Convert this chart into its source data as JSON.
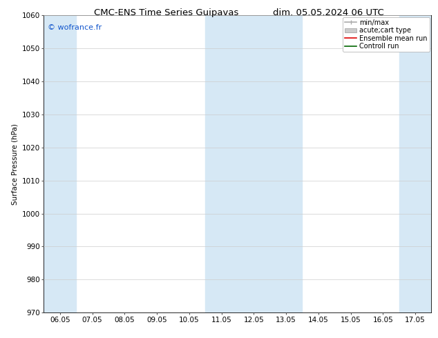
{
  "title_left": "CMC-ENS Time Series Guipavas",
  "title_right": "dim. 05.05.2024 06 UTC",
  "ylabel": "Surface Pressure (hPa)",
  "ylim": [
    970,
    1060
  ],
  "yticks": [
    970,
    980,
    990,
    1000,
    1010,
    1020,
    1030,
    1040,
    1050,
    1060
  ],
  "xtick_labels": [
    "06.05",
    "07.05",
    "08.05",
    "09.05",
    "10.05",
    "11.05",
    "12.05",
    "13.05",
    "14.05",
    "15.05",
    "16.05",
    "17.05"
  ],
  "xtick_positions": [
    0,
    1,
    2,
    3,
    4,
    5,
    6,
    7,
    8,
    9,
    10,
    11
  ],
  "xlim": [
    -0.5,
    11.5
  ],
  "shaded_bands": [
    {
      "x_start": -0.5,
      "x_end": 0.5,
      "color": "#d6e8f5"
    },
    {
      "x_start": 4.5,
      "x_end": 7.5,
      "color": "#d6e8f5"
    },
    {
      "x_start": 10.5,
      "x_end": 11.5,
      "color": "#d6e8f5"
    }
  ],
  "watermark_text": "© wofrance.fr",
  "watermark_color": "#1155cc",
  "legend_labels": [
    "min/max",
    "acute;cart type",
    "Ensemble mean run",
    "Controll run"
  ],
  "legend_colors_line": [
    "#aaaaaa",
    "#cccccc",
    "#dd0000",
    "#006600"
  ],
  "background_color": "#ffffff",
  "plot_bg_color": "#ffffff",
  "grid_color": "#cccccc",
  "title_fontsize": 9.5,
  "tick_fontsize": 7.5,
  "ylabel_fontsize": 7.5,
  "legend_fontsize": 7.0,
  "watermark_fontsize": 8.0
}
